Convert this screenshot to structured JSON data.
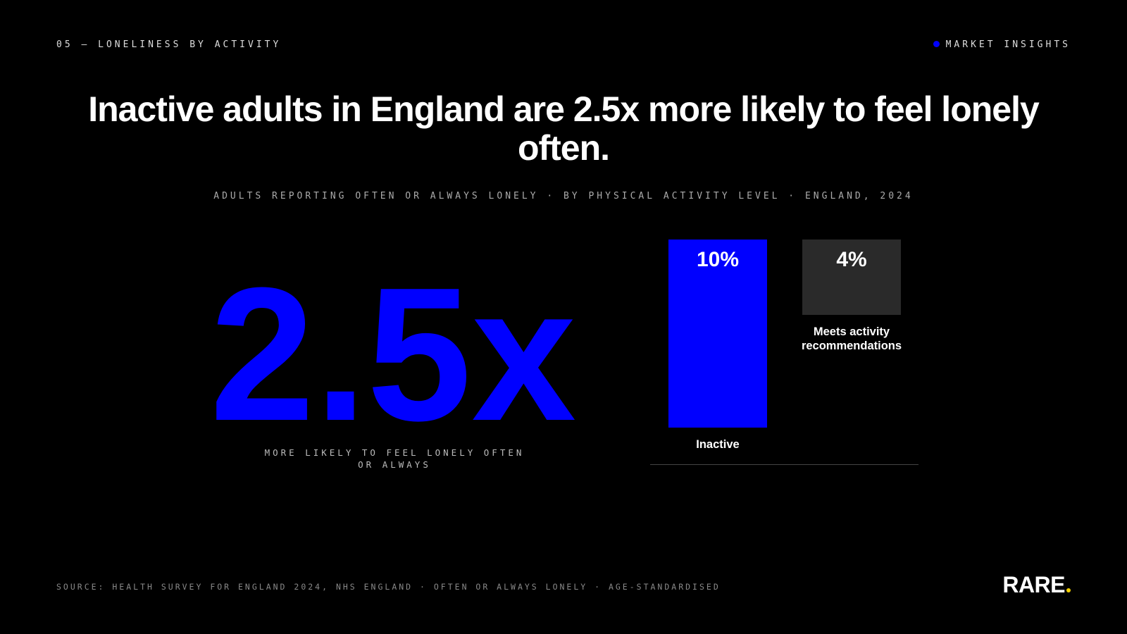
{
  "header": {
    "section": "05 — LONELINESS BY ACTIVITY",
    "tag": "MARKET INSIGHTS"
  },
  "title": "Inactive adults in England are 2.5x more likely to feel lonely often.",
  "subtitle": "ADULTS REPORTING OFTEN OR ALWAYS LONELY · BY PHYSICAL ACTIVITY LEVEL · ENGLAND, 2024",
  "stat": {
    "value": "2.5x",
    "caption": [
      "MORE LIKELY TO FEEL LONELY OFTEN",
      "OR ALWAYS"
    ]
  },
  "chart_data": {
    "type": "bar",
    "categories": [
      "Inactive",
      "Meets activity recommendations"
    ],
    "values": [
      10,
      4
    ],
    "value_labels": [
      "10%",
      "4%"
    ],
    "colors": [
      "#0000ff",
      "#2a2a2a"
    ]
  },
  "footer": {
    "source": "SOURCE: HEALTH SURVEY FOR ENGLAND 2024, NHS ENGLAND · OFTEN OR ALWAYS LONELY · AGE-STANDARDISED",
    "logo": "RARE"
  }
}
